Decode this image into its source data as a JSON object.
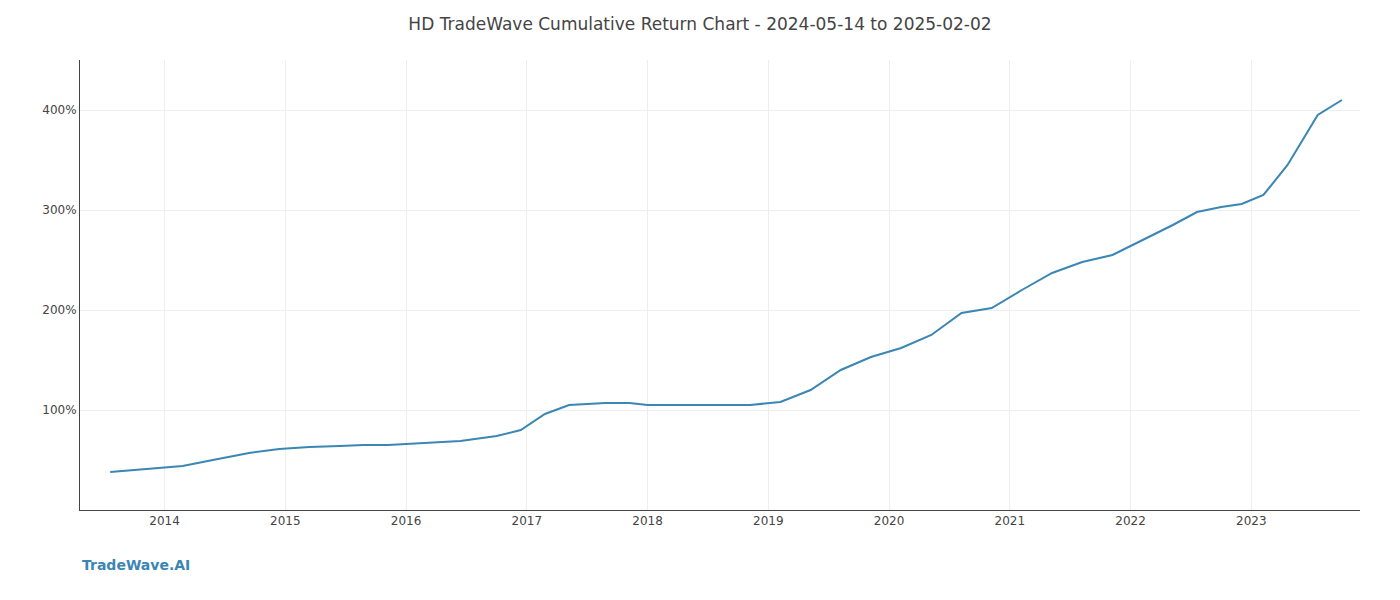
{
  "chart_data": {
    "type": "line",
    "title": "HD TradeWave Cumulative Return Chart - 2024-05-14 to 2025-02-02",
    "annotations": [
      {
        "text": "TradeWave.AI"
      }
    ],
    "x": [
      2013.55,
      2013.75,
      2013.95,
      2014.15,
      2014.4,
      2014.7,
      2014.95,
      2015.2,
      2015.45,
      2015.65,
      2015.85,
      2016.0,
      2016.2,
      2016.45,
      2016.75,
      2016.95,
      2017.15,
      2017.35,
      2017.65,
      2017.85,
      2018.0,
      2018.2,
      2018.45,
      2018.65,
      2018.85,
      2019.1,
      2019.35,
      2019.6,
      2019.85,
      2020.1,
      2020.35,
      2020.6,
      2020.85,
      2021.1,
      2021.35,
      2021.6,
      2021.85,
      2022.1,
      2022.35,
      2022.55,
      2022.75,
      2022.92,
      2023.1,
      2023.3,
      2023.55,
      2023.75
    ],
    "values": [
      38,
      40,
      42,
      44,
      50,
      57,
      61,
      63,
      64,
      65,
      65,
      66,
      67,
      69,
      74,
      80,
      96,
      105,
      107,
      107,
      105,
      105,
      105,
      105,
      105,
      108,
      120,
      140,
      153,
      162,
      175,
      197,
      202,
      220,
      237,
      248,
      255,
      270,
      285,
      298,
      303,
      306,
      315,
      345,
      395,
      410
    ],
    "color": "#3a86b4",
    "xlim": [
      2013.3,
      2023.9
    ],
    "xticks": [
      2014,
      2015,
      2016,
      2017,
      2018,
      2019,
      2020,
      2021,
      2022,
      2023
    ],
    "ylim": [
      0,
      450
    ],
    "yticks": [
      {
        "value": 100,
        "label": "100%"
      },
      {
        "value": 200,
        "label": "200%"
      },
      {
        "value": 300,
        "label": "300%"
      },
      {
        "value": 400,
        "label": "400%"
      }
    ],
    "grid": true
  }
}
